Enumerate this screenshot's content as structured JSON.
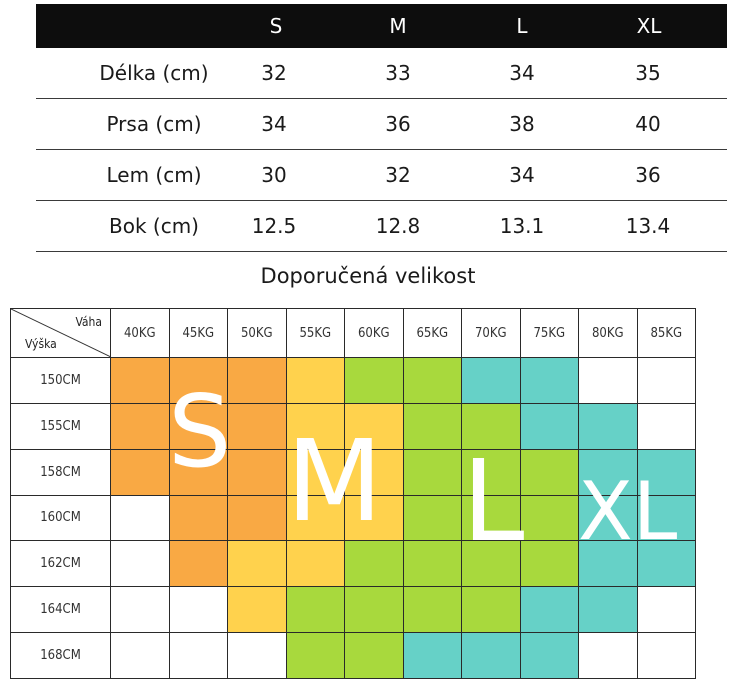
{
  "measurements": {
    "sizes": [
      "S",
      "M",
      "L",
      "XL"
    ],
    "rows": [
      {
        "label": "Délka (cm)",
        "values": [
          "32",
          "33",
          "34",
          "35"
        ]
      },
      {
        "label": "Prsa (cm)",
        "values": [
          "34",
          "36",
          "38",
          "40"
        ]
      },
      {
        "label": "Lem (cm)",
        "values": [
          "30",
          "32",
          "34",
          "36"
        ]
      },
      {
        "label": "Bok (cm)",
        "values": [
          "12.5",
          "12.8",
          "13.1",
          "13.4"
        ]
      }
    ]
  },
  "recommendation": {
    "title": "Doporučená velikost",
    "corner_weight": "Váha",
    "corner_height": "Výška",
    "weights": [
      "40KG",
      "45KG",
      "50KG",
      "55KG",
      "60KG",
      "65KG",
      "70KG",
      "75KG",
      "80KG",
      "85KG"
    ],
    "heights": [
      "150CM",
      "155CM",
      "158CM",
      "160CM",
      "162CM",
      "164CM",
      "168CM"
    ],
    "cells": [
      [
        "S",
        "S",
        "S",
        "M",
        "L",
        "L",
        "XL",
        "XL",
        "",
        ""
      ],
      [
        "S",
        "S",
        "S",
        "M",
        "M",
        "L",
        "L",
        "XL",
        "XL",
        ""
      ],
      [
        "S",
        "S",
        "S",
        "M",
        "M",
        "L",
        "L",
        "L",
        "XL",
        "XL"
      ],
      [
        "",
        "S",
        "S",
        "M",
        "M",
        "L",
        "L",
        "L",
        "XL",
        "XL"
      ],
      [
        "",
        "S",
        "M",
        "M",
        "L",
        "L",
        "L",
        "L",
        "XL",
        "XL"
      ],
      [
        "",
        "",
        "M",
        "L",
        "L",
        "L",
        "L",
        "XL",
        "XL",
        ""
      ],
      [
        "",
        "",
        "",
        "L",
        "L",
        "XL",
        "XL",
        "XL",
        "",
        ""
      ]
    ],
    "size_colors": {
      "S": "#f9a944",
      "M": "#ffd24d",
      "L": "#a8d93d",
      "XL": "#66d1c7"
    },
    "overlay_labels": {
      "s": "S",
      "m": "M",
      "l": "L",
      "xl": "XL"
    }
  }
}
